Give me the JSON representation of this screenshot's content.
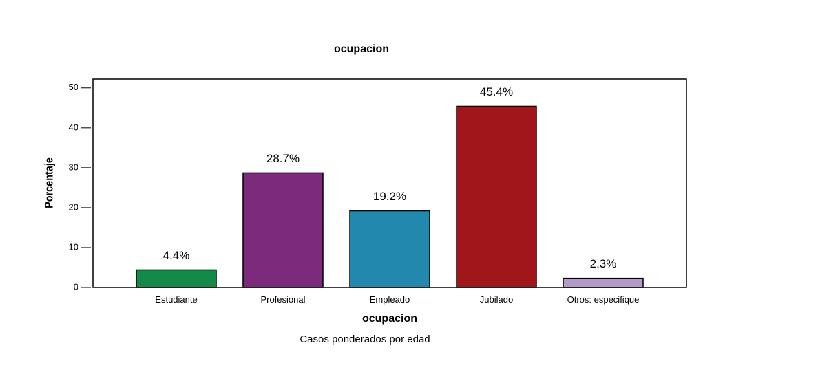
{
  "chart_data": {
    "type": "bar",
    "title": "ocupacion",
    "categories": [
      "Estudiante",
      "Profesional",
      "Empleado",
      "Jubilado",
      "Otros: especifique"
    ],
    "values": [
      4.4,
      28.7,
      19.2,
      45.4,
      2.3
    ],
    "value_labels": [
      "4.4%",
      "28.7%",
      "19.2%",
      "45.4%",
      "2.3%"
    ],
    "colors": [
      "#138a4a",
      "#7b2a7c",
      "#2388ad",
      "#a0161a",
      "#b599c9"
    ],
    "xlabel": "ocupacion",
    "ylabel": "Porcentaje",
    "note": "Casos ponderados por edad",
    "ylim": [
      0,
      52.2
    ],
    "yticks": [
      0,
      10,
      20,
      30,
      40,
      50
    ]
  }
}
